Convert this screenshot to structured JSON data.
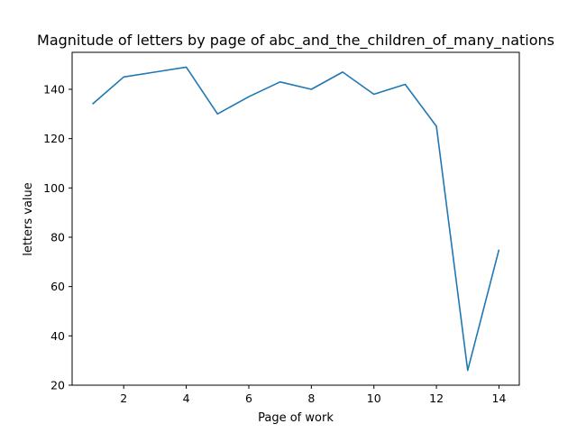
{
  "chart_data": {
    "type": "line",
    "title": "Magnitude of letters by page of abc_and_the_children_of_many_nations",
    "xlabel": "Page of work",
    "ylabel": "letters value",
    "xlim": [
      0.35,
      14.65
    ],
    "ylim": [
      20,
      155
    ],
    "xticks": [
      "2",
      "4",
      "6",
      "8",
      "10",
      "12",
      "14"
    ],
    "yticks": [
      "20",
      "40",
      "60",
      "80",
      "100",
      "120",
      "140"
    ],
    "grid": false,
    "series": [
      {
        "color": "#1f77b4",
        "x": [
          1,
          2,
          3,
          4,
          5,
          6,
          7,
          8,
          9,
          10,
          11,
          12,
          13,
          14
        ],
        "y": [
          134,
          145,
          147,
          149,
          130,
          137,
          143,
          140,
          147,
          138,
          142,
          125,
          26,
          75
        ]
      }
    ]
  }
}
